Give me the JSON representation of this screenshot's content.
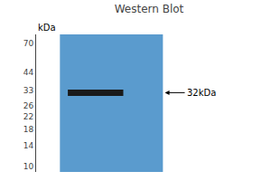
{
  "chart_data": {
    "type": "blot",
    "title": "Western Blot",
    "ylabel": "kDa",
    "values": [
      32
    ],
    "value_labels": [
      "32kDa"
    ],
    "data_labels": true,
    "color": "#1a1a1a",
    "log": "y",
    "ylim": [
      9.2,
      80.0
    ],
    "yticks": [
      70,
      44,
      33,
      26,
      22,
      18,
      14,
      10
    ],
    "grid": false,
    "tick_labels": "y"
  }
}
